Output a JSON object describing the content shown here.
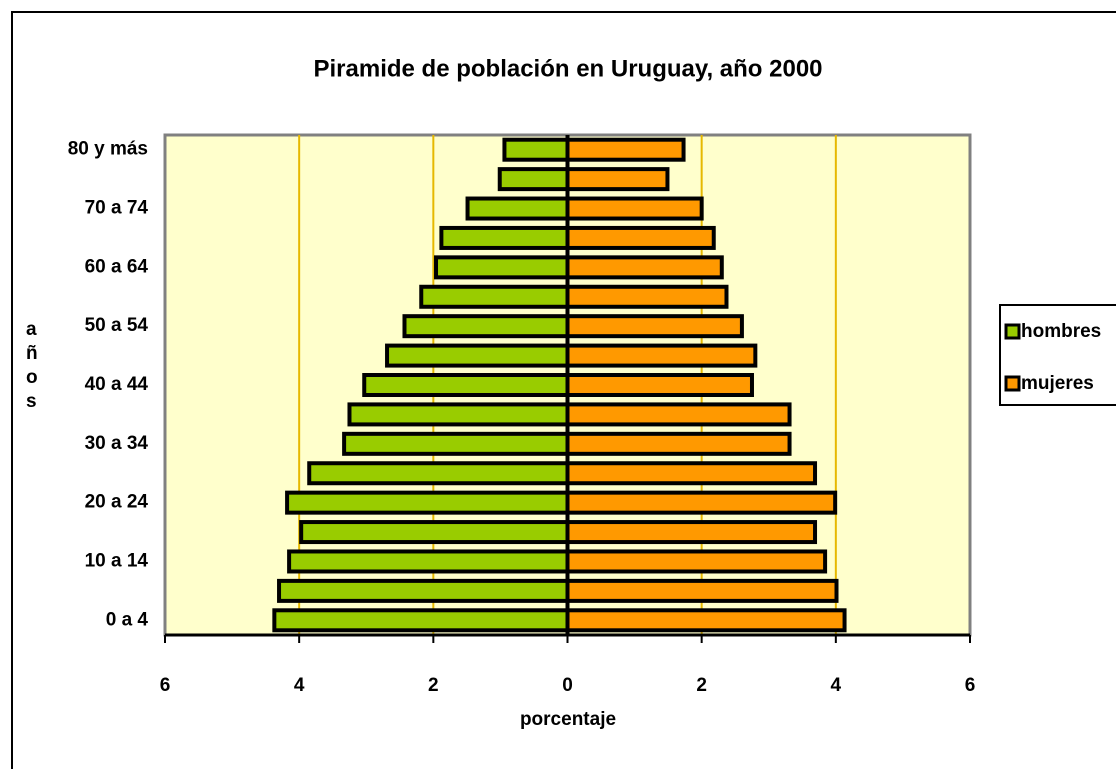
{
  "chart_data": {
    "type": "pyramid",
    "title": "Piramide de población en Uruguay, año 2000",
    "x_label": "porcentaje",
    "y_label": "años",
    "categories": [
      "0 a 4",
      null,
      "10 a 14",
      null,
      "20 a 24",
      null,
      "30 a 34",
      null,
      "40 a 44",
      null,
      "50 a 54",
      null,
      "60 a 64",
      null,
      "70 a 74",
      null,
      "80 y más"
    ],
    "series": [
      {
        "name": "hombres",
        "color": "#99cc00",
        "values": [
          -4.37,
          -4.3,
          -4.15,
          -3.97,
          -4.18,
          -3.85,
          -3.33,
          -3.25,
          -3.03,
          -2.69,
          -2.43,
          -2.18,
          -1.96,
          -1.88,
          -1.49,
          -1.01,
          -0.94
        ]
      },
      {
        "name": "mujeres",
        "color": "#ff9900",
        "values": [
          4.13,
          4.01,
          3.84,
          3.69,
          3.99,
          3.69,
          3.31,
          3.31,
          2.75,
          2.8,
          2.6,
          2.37,
          2.3,
          2.18,
          2.0,
          1.49,
          1.73
        ]
      }
    ],
    "xlim": [
      -6,
      6
    ],
    "xticks": [
      {
        "value": -6,
        "label": "6"
      },
      {
        "value": -4,
        "label": "4"
      },
      {
        "value": -2,
        "label": "2"
      },
      0,
      2,
      4,
      6
    ],
    "grid": true,
    "legend": "right"
  }
}
